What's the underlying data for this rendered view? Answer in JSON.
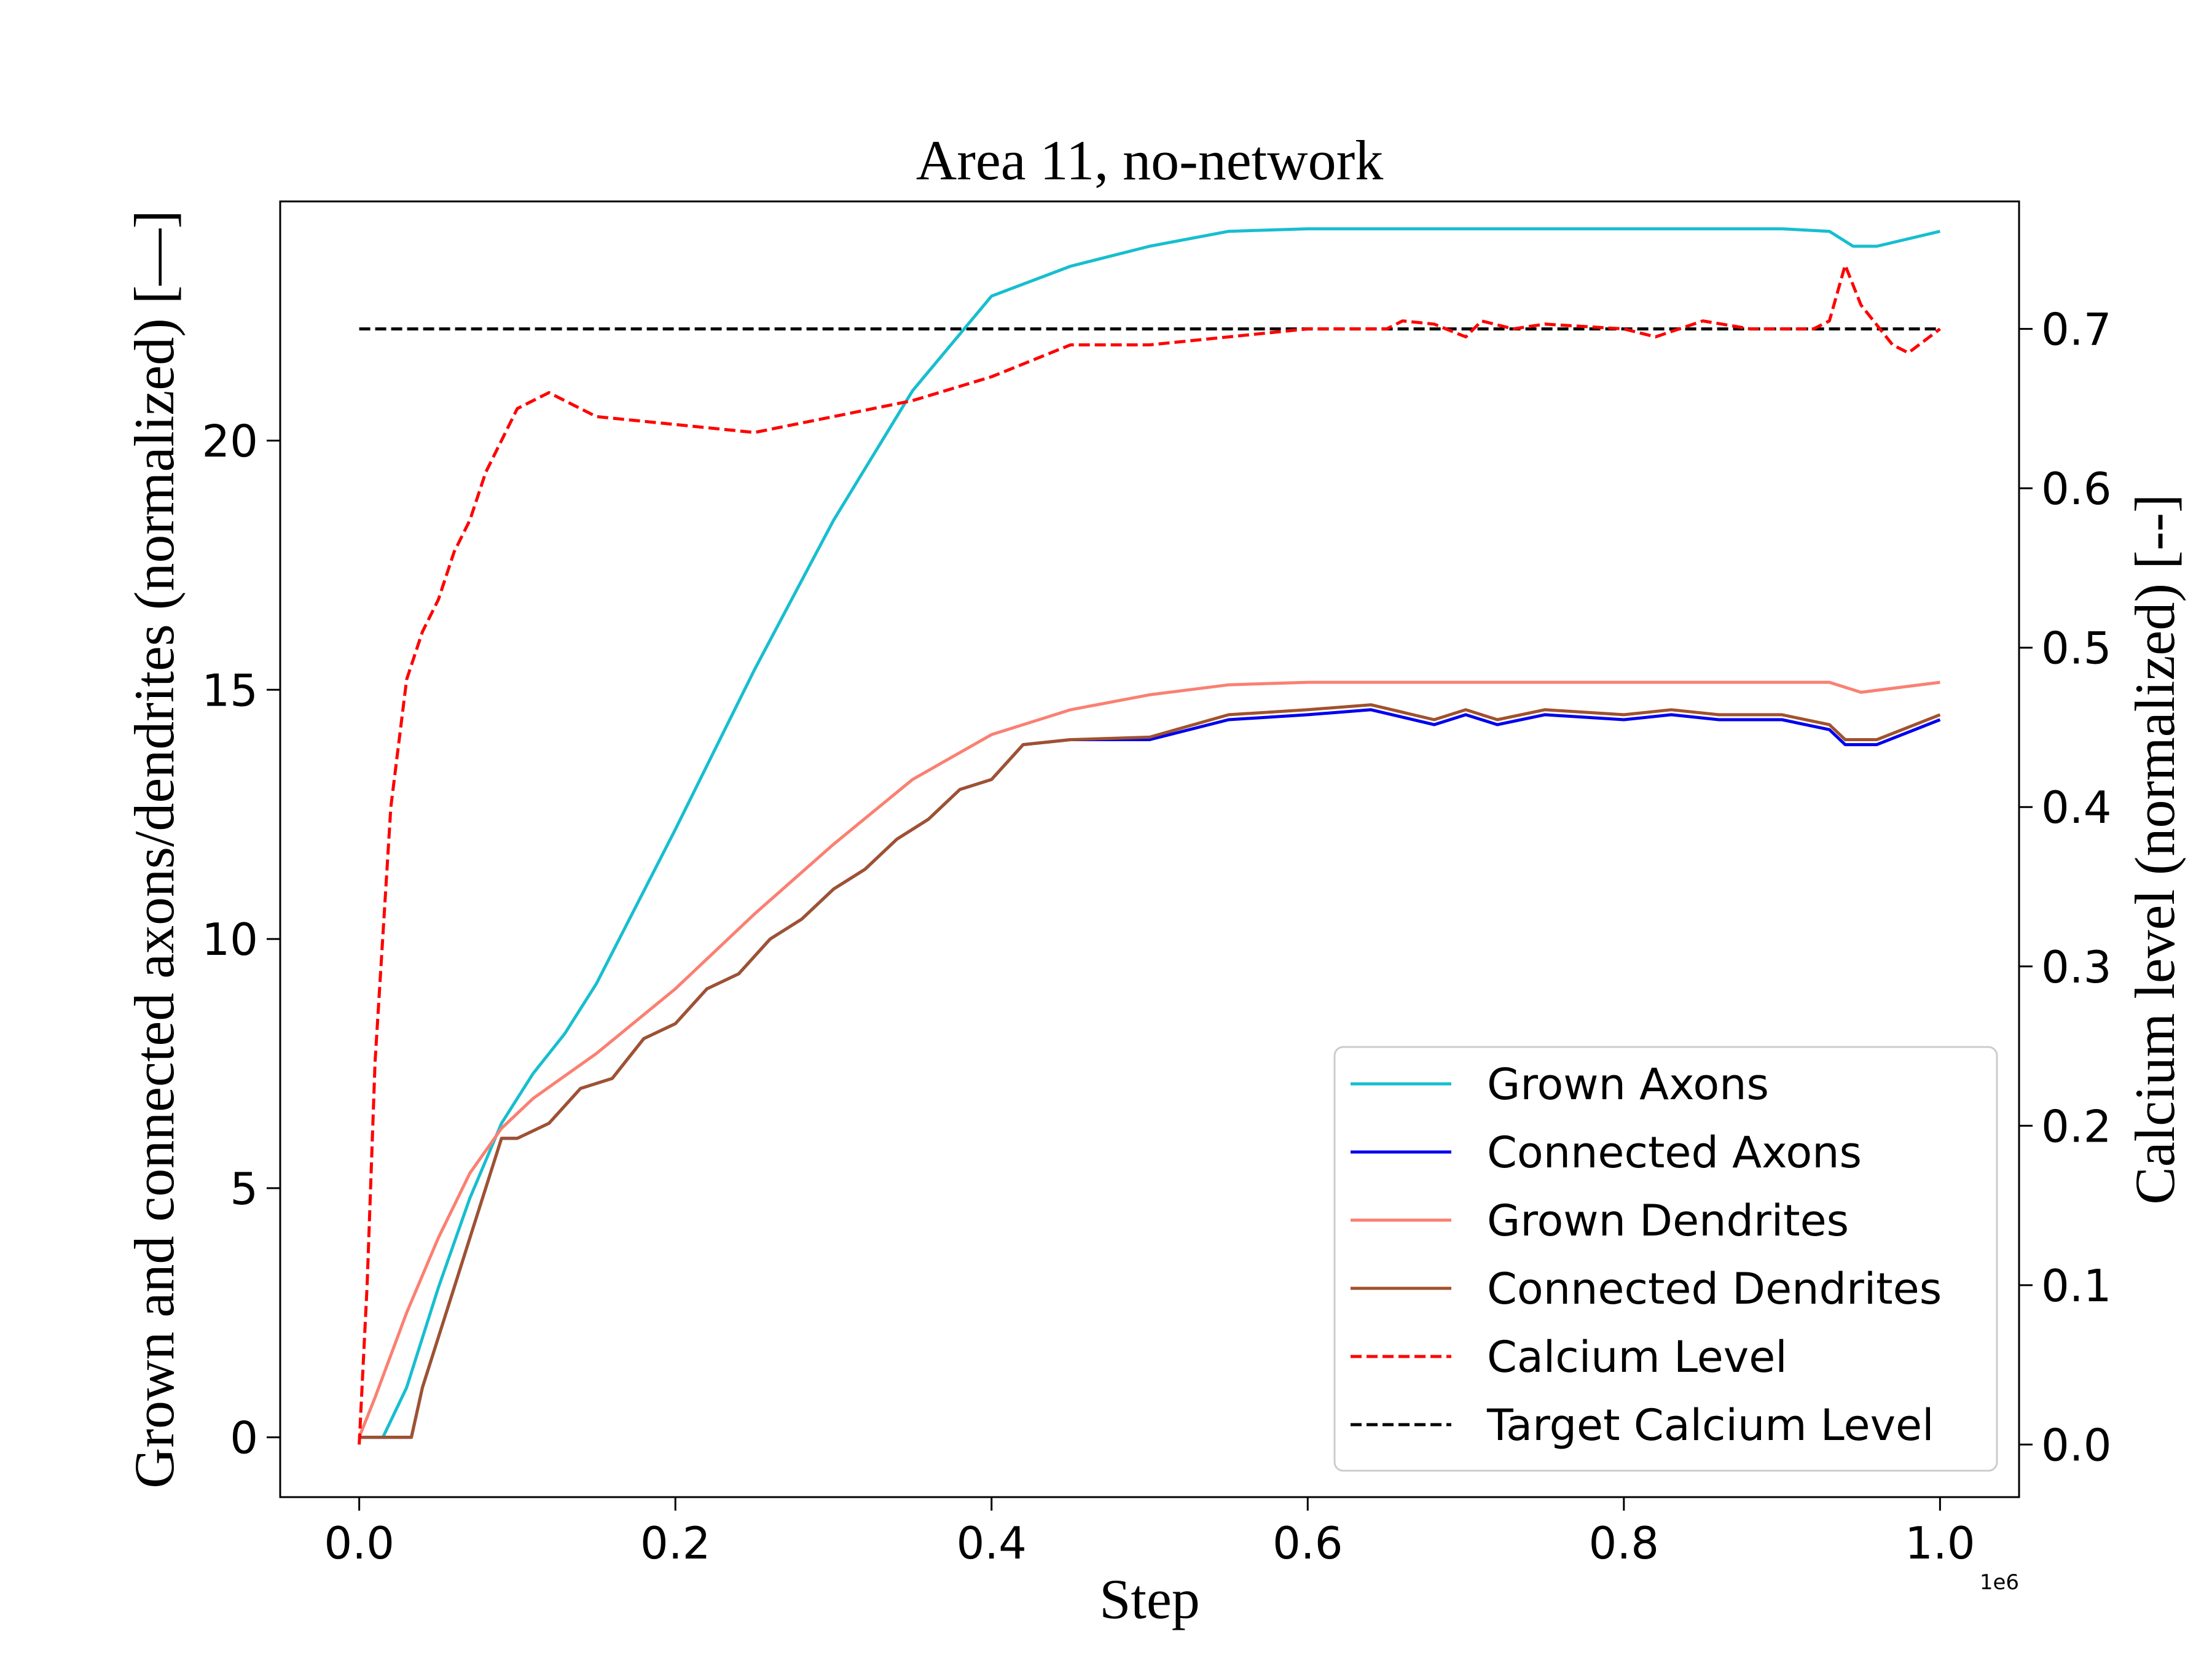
{
  "chart_data": {
    "type": "line",
    "title": "Area 11, no-network",
    "xlabel": "Step",
    "ylabel": "Grown and connected axons/dendrites (normalized) [—]",
    "y2label": "Calcium level (normalized) [--]",
    "x_offset_text": "1e6",
    "xlim": [
      -0.05,
      1.05
    ],
    "ylim": [
      -1.2,
      24.8
    ],
    "y2lim": [
      -0.033,
      0.78
    ],
    "xticks": [
      0.0,
      0.2,
      0.4,
      0.6,
      0.8,
      1.0
    ],
    "xtick_labels": [
      "0.0",
      "0.2",
      "0.4",
      "0.6",
      "0.8",
      "1.0"
    ],
    "yticks": [
      0,
      5,
      10,
      15,
      20
    ],
    "ytick_labels": [
      "0",
      "5",
      "10",
      "15",
      "20"
    ],
    "y2ticks": [
      0.0,
      0.1,
      0.2,
      0.3,
      0.4,
      0.5,
      0.6,
      0.7
    ],
    "y2tick_labels": [
      "0.0",
      "0.1",
      "0.2",
      "0.3",
      "0.4",
      "0.5",
      "0.6",
      "0.7"
    ],
    "grid": false,
    "legend_position": "lower-right",
    "series": [
      {
        "name": "Grown Axons",
        "color": "#17becf",
        "style": "solid",
        "axis": "left",
        "x": [
          0.0,
          0.015,
          0.03,
          0.05,
          0.07,
          0.09,
          0.11,
          0.13,
          0.15,
          0.2,
          0.25,
          0.3,
          0.35,
          0.4,
          0.45,
          0.5,
          0.55,
          0.6,
          0.65,
          0.7,
          0.75,
          0.8,
          0.85,
          0.9,
          0.93,
          0.945,
          0.96,
          1.0
        ],
        "y": [
          0.0,
          0.0,
          1.0,
          3.0,
          4.8,
          6.3,
          7.3,
          8.1,
          9.1,
          12.2,
          15.4,
          18.4,
          21.0,
          22.9,
          23.5,
          23.9,
          24.2,
          24.25,
          24.25,
          24.25,
          24.25,
          24.25,
          24.25,
          24.25,
          24.2,
          23.9,
          23.9,
          24.2
        ]
      },
      {
        "name": "Connected Axons",
        "color": "#0000ee",
        "style": "solid",
        "axis": "left",
        "x": [
          0.0,
          0.033,
          0.04,
          0.05,
          0.06,
          0.07,
          0.08,
          0.09,
          0.1,
          0.12,
          0.14,
          0.16,
          0.18,
          0.2,
          0.22,
          0.24,
          0.26,
          0.28,
          0.3,
          0.32,
          0.34,
          0.36,
          0.38,
          0.4,
          0.42,
          0.45,
          0.5,
          0.55,
          0.6,
          0.64,
          0.68,
          0.7,
          0.72,
          0.75,
          0.8,
          0.83,
          0.86,
          0.9,
          0.93,
          0.94,
          0.96,
          1.0
        ],
        "y": [
          0.0,
          0.0,
          1.0,
          2.0,
          3.0,
          4.0,
          5.0,
          6.0,
          6.0,
          6.3,
          7.0,
          7.2,
          8.0,
          8.3,
          9.0,
          9.3,
          10.0,
          10.4,
          11.0,
          11.4,
          12.0,
          12.4,
          13.0,
          13.2,
          13.9,
          14.0,
          14.0,
          14.4,
          14.5,
          14.6,
          14.3,
          14.5,
          14.3,
          14.5,
          14.4,
          14.5,
          14.4,
          14.4,
          14.2,
          13.9,
          13.9,
          14.4
        ]
      },
      {
        "name": "Grown Dendrites",
        "color": "#fa8072",
        "style": "solid",
        "axis": "left",
        "x": [
          0.0,
          0.01,
          0.03,
          0.05,
          0.07,
          0.09,
          0.11,
          0.15,
          0.2,
          0.25,
          0.3,
          0.35,
          0.4,
          0.45,
          0.5,
          0.55,
          0.6,
          0.65,
          0.7,
          0.8,
          0.9,
          0.93,
          0.95,
          1.0
        ],
        "y": [
          0.0,
          0.8,
          2.5,
          4.0,
          5.3,
          6.2,
          6.8,
          7.7,
          9.0,
          10.5,
          11.9,
          13.2,
          14.1,
          14.6,
          14.9,
          15.1,
          15.15,
          15.15,
          15.15,
          15.15,
          15.15,
          15.15,
          14.95,
          15.15
        ]
      },
      {
        "name": "Connected Dendrites",
        "color": "#a0522d",
        "style": "solid",
        "axis": "left",
        "x": [
          0.0,
          0.033,
          0.04,
          0.05,
          0.06,
          0.07,
          0.08,
          0.09,
          0.1,
          0.12,
          0.14,
          0.16,
          0.18,
          0.2,
          0.22,
          0.24,
          0.26,
          0.28,
          0.3,
          0.32,
          0.34,
          0.36,
          0.38,
          0.4,
          0.42,
          0.45,
          0.5,
          0.55,
          0.6,
          0.64,
          0.68,
          0.7,
          0.72,
          0.75,
          0.8,
          0.83,
          0.86,
          0.9,
          0.93,
          0.94,
          0.96,
          1.0
        ],
        "y": [
          0.0,
          0.0,
          1.0,
          2.0,
          3.0,
          4.0,
          5.0,
          6.0,
          6.0,
          6.3,
          7.0,
          7.2,
          8.0,
          8.3,
          9.0,
          9.3,
          10.0,
          10.4,
          11.0,
          11.4,
          12.0,
          12.4,
          13.0,
          13.2,
          13.9,
          14.0,
          14.05,
          14.5,
          14.6,
          14.7,
          14.4,
          14.6,
          14.4,
          14.6,
          14.5,
          14.6,
          14.5,
          14.5,
          14.3,
          14.0,
          14.0,
          14.5
        ]
      },
      {
        "name": "Calcium Level",
        "color": "#ff0000",
        "style": "dashed",
        "axis": "right",
        "x": [
          0.0,
          0.005,
          0.01,
          0.02,
          0.03,
          0.04,
          0.05,
          0.06,
          0.07,
          0.08,
          0.09,
          0.1,
          0.11,
          0.12,
          0.13,
          0.15,
          0.2,
          0.25,
          0.3,
          0.35,
          0.4,
          0.45,
          0.5,
          0.55,
          0.6,
          0.65,
          0.66,
          0.68,
          0.7,
          0.71,
          0.73,
          0.75,
          0.8,
          0.82,
          0.85,
          0.88,
          0.9,
          0.92,
          0.93,
          0.94,
          0.95,
          0.97,
          0.98,
          1.0
        ],
        "y": [
          0.0,
          0.1,
          0.24,
          0.4,
          0.48,
          0.51,
          0.53,
          0.56,
          0.58,
          0.61,
          0.63,
          0.65,
          0.655,
          0.66,
          0.655,
          0.645,
          0.64,
          0.635,
          0.645,
          0.655,
          0.67,
          0.69,
          0.69,
          0.695,
          0.7,
          0.7,
          0.705,
          0.703,
          0.695,
          0.705,
          0.7,
          0.703,
          0.7,
          0.695,
          0.705,
          0.7,
          0.7,
          0.7,
          0.705,
          0.74,
          0.715,
          0.69,
          0.685,
          0.7
        ]
      },
      {
        "name": "Target Calcium Level",
        "color": "#000000",
        "style": "dashed",
        "axis": "right",
        "x": [
          0.0,
          1.0
        ],
        "y": [
          0.7,
          0.7
        ]
      }
    ]
  }
}
